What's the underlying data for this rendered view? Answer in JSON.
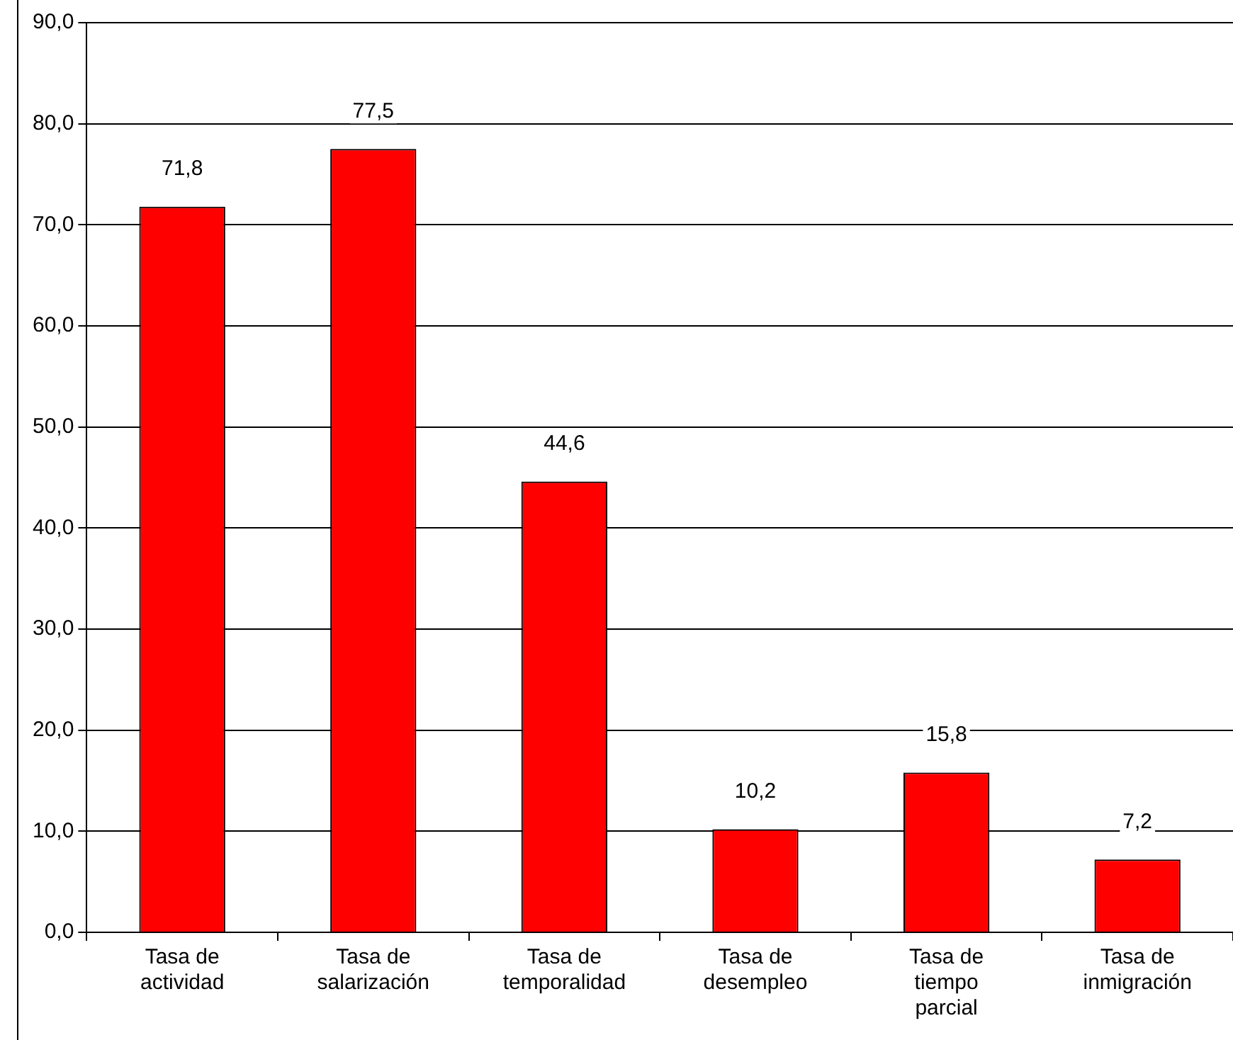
{
  "chart_data": {
    "type": "bar",
    "categories": [
      "Tasa de actividad",
      "Tasa de salarización",
      "Tasa de temporalidad",
      "Tasa de desempleo",
      "Tasa de tiempo parcial",
      "Tasa de inmigración"
    ],
    "values": [
      71.8,
      77.5,
      44.6,
      10.2,
      15.8,
      7.2
    ],
    "value_labels": [
      "71,8",
      "77,5",
      "44,6",
      "10,2",
      "15,8",
      "7,2"
    ],
    "color": "#ff0000",
    "ylim": [
      0,
      90
    ],
    "yticks": [
      {
        "value": 0,
        "label": "0,0"
      },
      {
        "value": 10,
        "label": "10,0"
      },
      {
        "value": 20,
        "label": "20,0"
      },
      {
        "value": 30,
        "label": "30,0"
      },
      {
        "value": 40,
        "label": "40,0"
      },
      {
        "value": 50,
        "label": "50,0"
      },
      {
        "value": 60,
        "label": "60,0"
      },
      {
        "value": 70,
        "label": "70,0"
      },
      {
        "value": 80,
        "label": "80,0"
      },
      {
        "value": 90,
        "label": "90,0"
      }
    ],
    "grid": "y",
    "legend": false
  }
}
